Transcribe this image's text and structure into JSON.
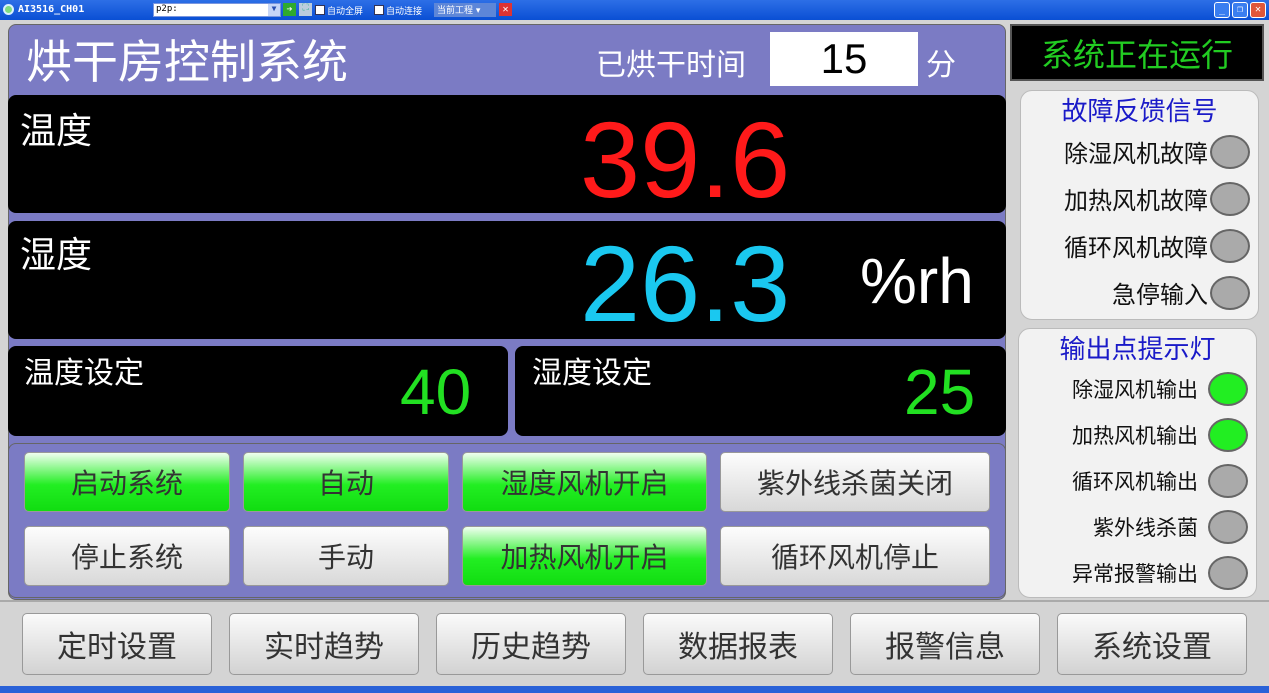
{
  "window": {
    "title": "AI3516_CH01",
    "address": "p2p:",
    "auto_fullscreen": "自动全屏",
    "auto_connect": "自动连接",
    "current_project": "当前工程"
  },
  "header": {
    "title": "烘干房控制系统",
    "elapsed_label": "已烘干时间",
    "elapsed_value": "15",
    "elapsed_unit": "分"
  },
  "status": {
    "text": "系统正在运行",
    "color": "#22cc22"
  },
  "temperature": {
    "label": "温度",
    "value": "39.6",
    "color": "#ff1a1a"
  },
  "humidity": {
    "label": "湿度",
    "value": "26.3",
    "unit": "%rh",
    "color": "#1ac8f0"
  },
  "temp_set": {
    "label": "温度设定",
    "value": "40"
  },
  "hum_set": {
    "label": "湿度设定",
    "value": "25"
  },
  "controls": [
    {
      "label": "启动系统",
      "active": true
    },
    {
      "label": "自动",
      "active": true
    },
    {
      "label": "湿度风机开启",
      "active": true
    },
    {
      "label": "紫外线杀菌关闭",
      "active": false
    },
    {
      "label": "停止系统",
      "active": false
    },
    {
      "label": "手动",
      "active": false
    },
    {
      "label": "加热风机开启",
      "active": true
    },
    {
      "label": "循环风机停止",
      "active": false
    }
  ],
  "fault_panel": {
    "title": "故障反馈信号",
    "items": [
      {
        "label": "除湿风机故障",
        "on": false
      },
      {
        "label": "加热风机故障",
        "on": false
      },
      {
        "label": "循环风机故障",
        "on": false
      },
      {
        "label": "急停输入",
        "on": false
      }
    ]
  },
  "output_panel": {
    "title": "输出点提示灯",
    "items": [
      {
        "label": "除湿风机输出",
        "on": true
      },
      {
        "label": "加热风机输出",
        "on": true
      },
      {
        "label": "循环风机输出",
        "on": false
      },
      {
        "label": "紫外线杀菌",
        "on": false
      },
      {
        "label": "异常报警输出",
        "on": false
      }
    ]
  },
  "nav": [
    "定时设置",
    "实时趋势",
    "历史趋势",
    "数据报表",
    "报警信息",
    "系统设置"
  ]
}
